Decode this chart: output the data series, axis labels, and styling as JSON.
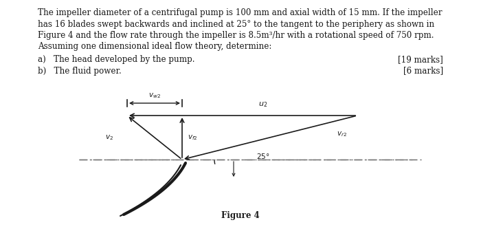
{
  "line1": "The impeller diameter of a centrifugal pump is 100 mm and axial width of 15 mm. If the impeller",
  "line2": "has 16 blades swept backwards and inclined at 25° to the tangent to the periphery as shown in",
  "line3": "Figure 4 and the flow rate through the impeller is 8.5m³/hr with a rotational speed of 750 rpm.",
  "line4": "Assuming one dimensional ideal flow theory, determine:",
  "part_a": "a)   The head developed by the pump.",
  "part_a_marks": "[19 marks]",
  "part_b": "b)   The fluid power.",
  "part_b_marks": "[6 marks]",
  "figure_caption": "Figure 4",
  "bg_color": "#ffffff",
  "text_color": "#1a1a1a",
  "line_color": "#1a1a1a"
}
